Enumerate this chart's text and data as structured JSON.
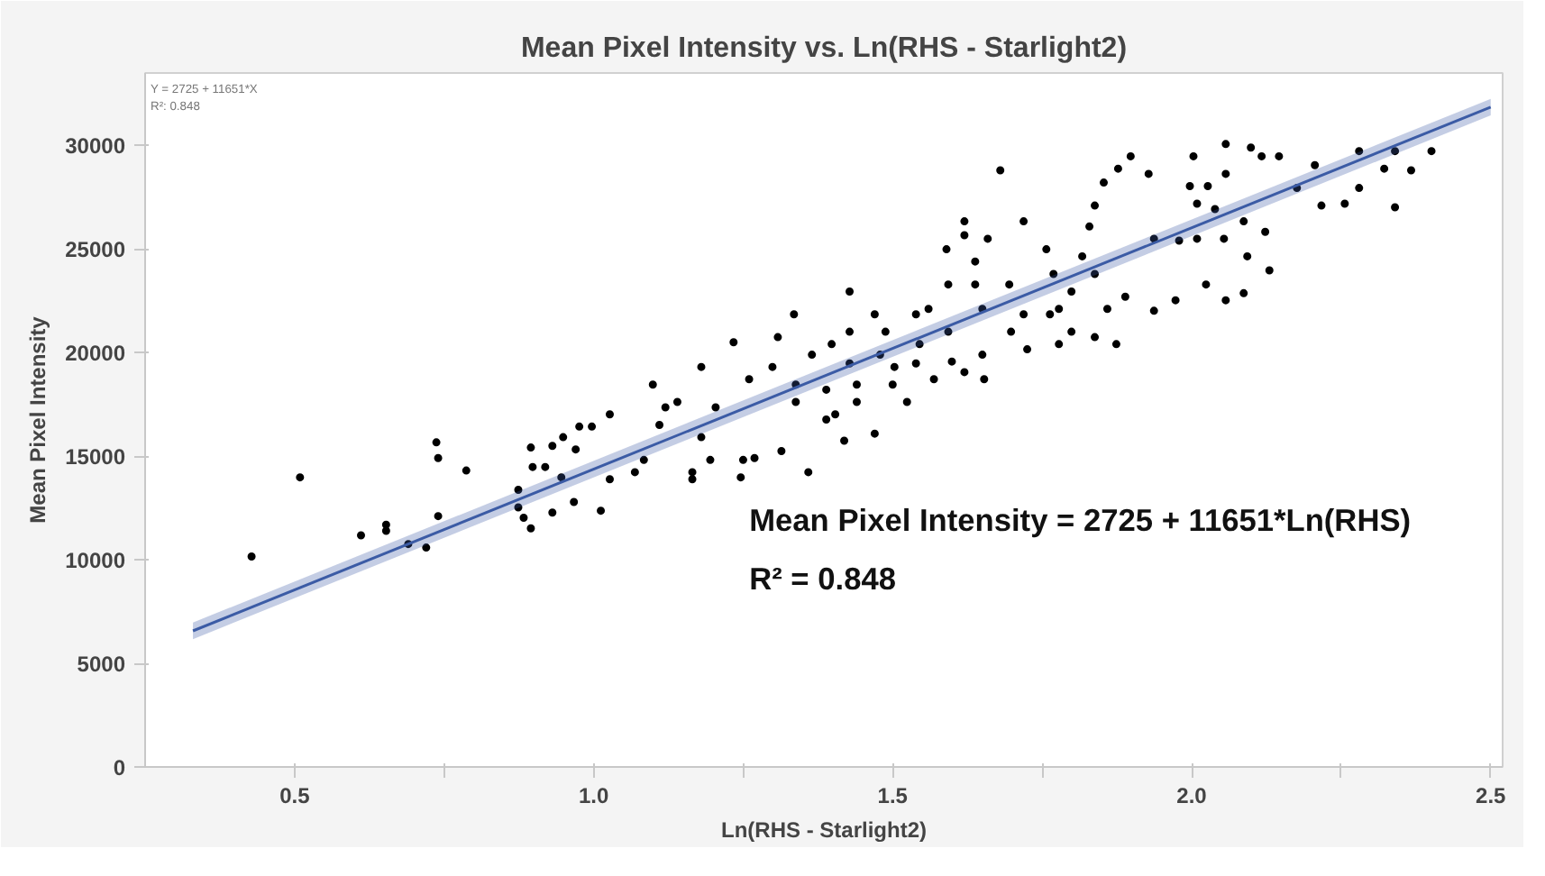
{
  "chart_data": {
    "type": "scatter",
    "title": "Mean Pixel Intensity vs. Ln(RHS - Starlight2)",
    "xlabel": "Ln(RHS - Starlight2)",
    "ylabel": "Mean Pixel Intensity",
    "annotations": [
      "Y = 2725 + 11651*X",
      "R²: 0.848",
      "Mean Pixel Intensity = 2725 + 11651*Ln(RHS)",
      "R² = 0.848"
    ],
    "xlim": [
      0.25,
      2.52
    ],
    "ylim": [
      0,
      33500
    ],
    "xticks": [
      {
        "value": 0.5,
        "label": "0.5"
      },
      {
        "value": 0.75,
        "label": null
      },
      {
        "value": 1.0,
        "label": "1.0"
      },
      {
        "value": 1.25,
        "label": null
      },
      {
        "value": 1.5,
        "label": "1.5"
      },
      {
        "value": 1.75,
        "label": null
      },
      {
        "value": 2.0,
        "label": "2.0"
      },
      {
        "value": 2.25,
        "label": null
      },
      {
        "value": 2.5,
        "label": "2.5"
      }
    ],
    "yticks": [
      0,
      5000,
      10000,
      15000,
      20000,
      25000,
      30000
    ],
    "grid": false,
    "series": [
      {
        "marker": "circle",
        "color": "#000000",
        "x": [
          0.428,
          0.509,
          0.611,
          0.653,
          0.653,
          0.69,
          0.72,
          0.737,
          0.74,
          0.74,
          0.787,
          0.874,
          0.874,
          0.883,
          0.895,
          0.895,
          0.898,
          0.919,
          0.931,
          0.931,
          0.946,
          0.949,
          0.967,
          0.97,
          0.976,
          0.997,
          1.012,
          1.027,
          1.027,
          1.069,
          1.084,
          1.11,
          1.12,
          1.14,
          1.165,
          1.165,
          1.18,
          1.195,
          1.204,
          1.246,
          1.25,
          1.234,
          1.18,
          1.099,
          1.269,
          1.314,
          1.359,
          1.389,
          1.419,
          1.47,
          1.338,
          1.404,
          1.44,
          1.26,
          2.401,
          2.367,
          2.34,
          2.34,
          2.322,
          2.28,
          2.28,
          2.256,
          2.217,
          2.206,
          2.176,
          2.146,
          2.13,
          2.123,
          2.117,
          2.099,
          2.087,
          2.093,
          2.057,
          2.057,
          2.054,
          2.039,
          2.027,
          2.003,
          2.009,
          2.009,
          1.997,
          1.979,
          1.973,
          2.057,
          2.087,
          2.024,
          1.937,
          1.937,
          1.928,
          1.898,
          1.877,
          1.853,
          1.838,
          1.829,
          1.817,
          1.838,
          1.859,
          1.889,
          1.799,
          1.769,
          1.757,
          1.763,
          1.799,
          1.838,
          1.874,
          1.778,
          1.778,
          1.719,
          1.68,
          1.695,
          1.719,
          1.725,
          1.698,
          1.659,
          1.62,
          1.62,
          1.59,
          1.638,
          1.638,
          1.65,
          1.593,
          1.56,
          1.539,
          1.545,
          1.539,
          1.593,
          1.599,
          1.65,
          1.653,
          1.62,
          1.569,
          1.428,
          1.428,
          1.428,
          1.398,
          1.365,
          1.335,
          1.308,
          1.299,
          1.338,
          1.389,
          1.44,
          1.47,
          1.479,
          1.5,
          1.524,
          1.503,
          1.488
        ],
        "values": [
          10160,
          13980,
          11180,
          11690,
          11400,
          10760,
          10590,
          15670,
          14910,
          12110,
          14310,
          13380,
          12530,
          12030,
          11520,
          15420,
          14480,
          14480,
          15500,
          12280,
          13980,
          15920,
          12790,
          15330,
          16430,
          16430,
          12370,
          17020,
          13890,
          14230,
          14820,
          16510,
          17360,
          17620,
          14230,
          13890,
          15920,
          14820,
          17360,
          13980,
          14820,
          20500,
          19310,
          18460,
          14910,
          15250,
          14230,
          16770,
          15750,
          16090,
          17620,
          17020,
          17620,
          18720,
          29730,
          28800,
          29730,
          27020,
          28880,
          29730,
          27950,
          27190,
          27100,
          29050,
          27950,
          29480,
          23970,
          25830,
          29480,
          29900,
          26340,
          24650,
          30070,
          28630,
          25500,
          26930,
          28040,
          29480,
          27190,
          25500,
          28040,
          25410,
          22530,
          22530,
          22870,
          23290,
          25500,
          22020,
          28630,
          29480,
          28880,
          28210,
          27100,
          26090,
          24650,
          23800,
          22110,
          22700,
          22950,
          23800,
          24990,
          21850,
          21010,
          20750,
          20410,
          20410,
          22110,
          26340,
          28800,
          23290,
          21850,
          20160,
          21010,
          25500,
          26340,
          25670,
          24990,
          24400,
          23290,
          22110,
          23290,
          22110,
          21850,
          20410,
          19480,
          21010,
          19570,
          19900,
          18720,
          19060,
          18720,
          22950,
          21010,
          19480,
          20410,
          19900,
          21850,
          20750,
          19310,
          18460,
          18210,
          18460,
          21850,
          19900,
          18460,
          17620,
          19310,
          21010
        ]
      },
      {
        "type": "line",
        "color": "#3b5ba5",
        "x": [
          0.33,
          2.5
        ],
        "values": [
          6570,
          31853
        ],
        "lower": [
          6170,
          31453
        ],
        "upper": [
          6970,
          32253
        ]
      }
    ]
  }
}
